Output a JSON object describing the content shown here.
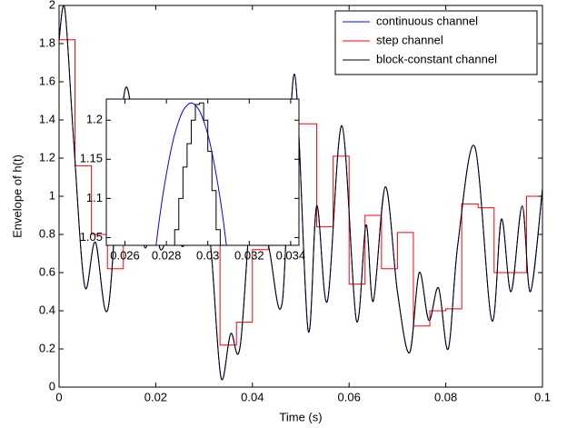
{
  "chart_data": [
    {
      "type": "line",
      "xlabel": "Time (s)",
      "ylabel": "Envelope of h(t)",
      "xlim": [
        0,
        0.1
      ],
      "ylim": [
        0,
        2
      ],
      "xticks": [
        0,
        0.02,
        0.04,
        0.06,
        0.08,
        0.1
      ],
      "yticks": [
        0,
        0.2,
        0.4,
        0.6,
        0.8,
        1,
        1.2,
        1.4,
        1.6,
        1.8,
        2
      ],
      "legend": "upper right",
      "series": [
        {
          "name": "continuous channel",
          "color": "#0000ff",
          "x": [
            0,
            0.0012,
            0.003,
            0.0053,
            0.0075,
            0.0102,
            0.0138,
            0.0175,
            0.0195,
            0.021,
            0.0235,
            0.026,
            0.0292,
            0.0315,
            0.0335,
            0.0355,
            0.0375,
            0.0405,
            0.0435,
            0.0462,
            0.0487,
            0.0515,
            0.0533,
            0.0555,
            0.0585,
            0.0615,
            0.0635,
            0.065,
            0.0675,
            0.07,
            0.0725,
            0.0745,
            0.0765,
            0.0785,
            0.0805,
            0.0825,
            0.086,
            0.0895,
            0.0915,
            0.0935,
            0.0958,
            0.0975,
            0.1
          ],
          "values": [
            1.82,
            1.98,
            1.3,
            0.53,
            0.76,
            0.42,
            1.57,
            0.75,
            0.95,
            0.72,
            0.85,
            0.75,
            1.22,
            0.7,
            0.05,
            0.28,
            0.22,
            1.15,
            0.72,
            0.45,
            1.64,
            0.3,
            0.95,
            0.45,
            1.37,
            0.35,
            0.85,
            0.45,
            1.05,
            0.5,
            0.18,
            0.6,
            0.35,
            0.52,
            0.2,
            0.75,
            1.26,
            0.35,
            0.88,
            0.5,
            0.95,
            0.5,
            1.04
          ]
        },
        {
          "name": "step channel",
          "color": "#ff0000",
          "step": true,
          "x": [
            0,
            0.0033,
            0.0067,
            0.01,
            0.0133,
            0.0167,
            0.02,
            0.0233,
            0.0267,
            0.03,
            0.0333,
            0.0367,
            0.04,
            0.0433,
            0.0467,
            0.05,
            0.0533,
            0.0567,
            0.06,
            0.0633,
            0.0667,
            0.07,
            0.0733,
            0.0767,
            0.08,
            0.0833,
            0.0867,
            0.09,
            0.0933,
            0.0967
          ],
          "values": [
            1.82,
            1.16,
            0.8,
            0.62,
            1.28,
            1.05,
            0.8,
            0.92,
            1.15,
            0.83,
            0.22,
            0.34,
            0.72,
            0.83,
            1.38,
            1.38,
            0.84,
            1.21,
            0.54,
            0.9,
            0.62,
            0.81,
            0.32,
            0.4,
            0.41,
            0.96,
            0.94,
            0.6,
            0.6,
            1.0
          ]
        },
        {
          "name": "block-constant channel",
          "color": "#000000",
          "x": [
            0,
            0.0012,
            0.003,
            0.0053,
            0.0075,
            0.0102,
            0.0138,
            0.0175,
            0.0195,
            0.021,
            0.0235,
            0.026,
            0.0292,
            0.0315,
            0.0335,
            0.0355,
            0.0375,
            0.0405,
            0.0435,
            0.0462,
            0.0487,
            0.0515,
            0.0533,
            0.0555,
            0.0585,
            0.0615,
            0.0635,
            0.065,
            0.0675,
            0.07,
            0.0725,
            0.0745,
            0.0765,
            0.0785,
            0.0805,
            0.0825,
            0.086,
            0.0895,
            0.0915,
            0.0935,
            0.0958,
            0.0975,
            0.1
          ],
          "values": [
            1.82,
            1.98,
            1.3,
            0.53,
            0.76,
            0.42,
            1.57,
            0.75,
            0.95,
            0.72,
            0.85,
            0.75,
            1.22,
            0.7,
            0.05,
            0.28,
            0.22,
            1.15,
            0.72,
            0.45,
            1.64,
            0.3,
            0.95,
            0.45,
            1.37,
            0.35,
            0.85,
            0.45,
            1.05,
            0.5,
            0.18,
            0.6,
            0.35,
            0.52,
            0.2,
            0.75,
            1.26,
            0.35,
            0.88,
            0.5,
            0.95,
            0.5,
            1.04
          ]
        }
      ]
    },
    {
      "type": "line",
      "xlim": [
        0.0251,
        0.0344
      ],
      "ylim": [
        1.04,
        1.227
      ],
      "xticks": [
        0.026,
        0.028,
        0.03,
        0.032,
        0.034
      ],
      "yticks": [
        1.05,
        1.1,
        1.15,
        1.2
      ],
      "series": [
        {
          "color": "#0000ff",
          "x": [
            0.0272,
            0.0274,
            0.0276,
            0.0278,
            0.028,
            0.0282,
            0.0284,
            0.0286,
            0.0288,
            0.029,
            0.0292,
            0.0294,
            0.0296,
            0.0298,
            0.03,
            0.0302,
            0.0304,
            0.0306,
            0.0308,
            0.031,
            0.0312
          ],
          "values": [
            0.97,
            1.018,
            1.061,
            1.099,
            1.131,
            1.159,
            1.182,
            1.199,
            1.212,
            1.219,
            1.222,
            1.219,
            1.212,
            1.199,
            1.182,
            1.159,
            1.131,
            1.099,
            1.061,
            1.018,
            0.97
          ]
        },
        {
          "color": "#000000",
          "step": true,
          "x": [
            0.0282,
            0.0284,
            0.0286,
            0.0288,
            0.029,
            0.0292,
            0.0294,
            0.0296,
            0.0298,
            0.03,
            0.0302,
            0.0304,
            0.0306
          ],
          "values": [
            1.03,
            1.06,
            1.1,
            1.14,
            1.17,
            1.2,
            1.22,
            1.222,
            1.2,
            1.16,
            1.11,
            1.06,
            1.0
          ]
        }
      ]
    }
  ]
}
